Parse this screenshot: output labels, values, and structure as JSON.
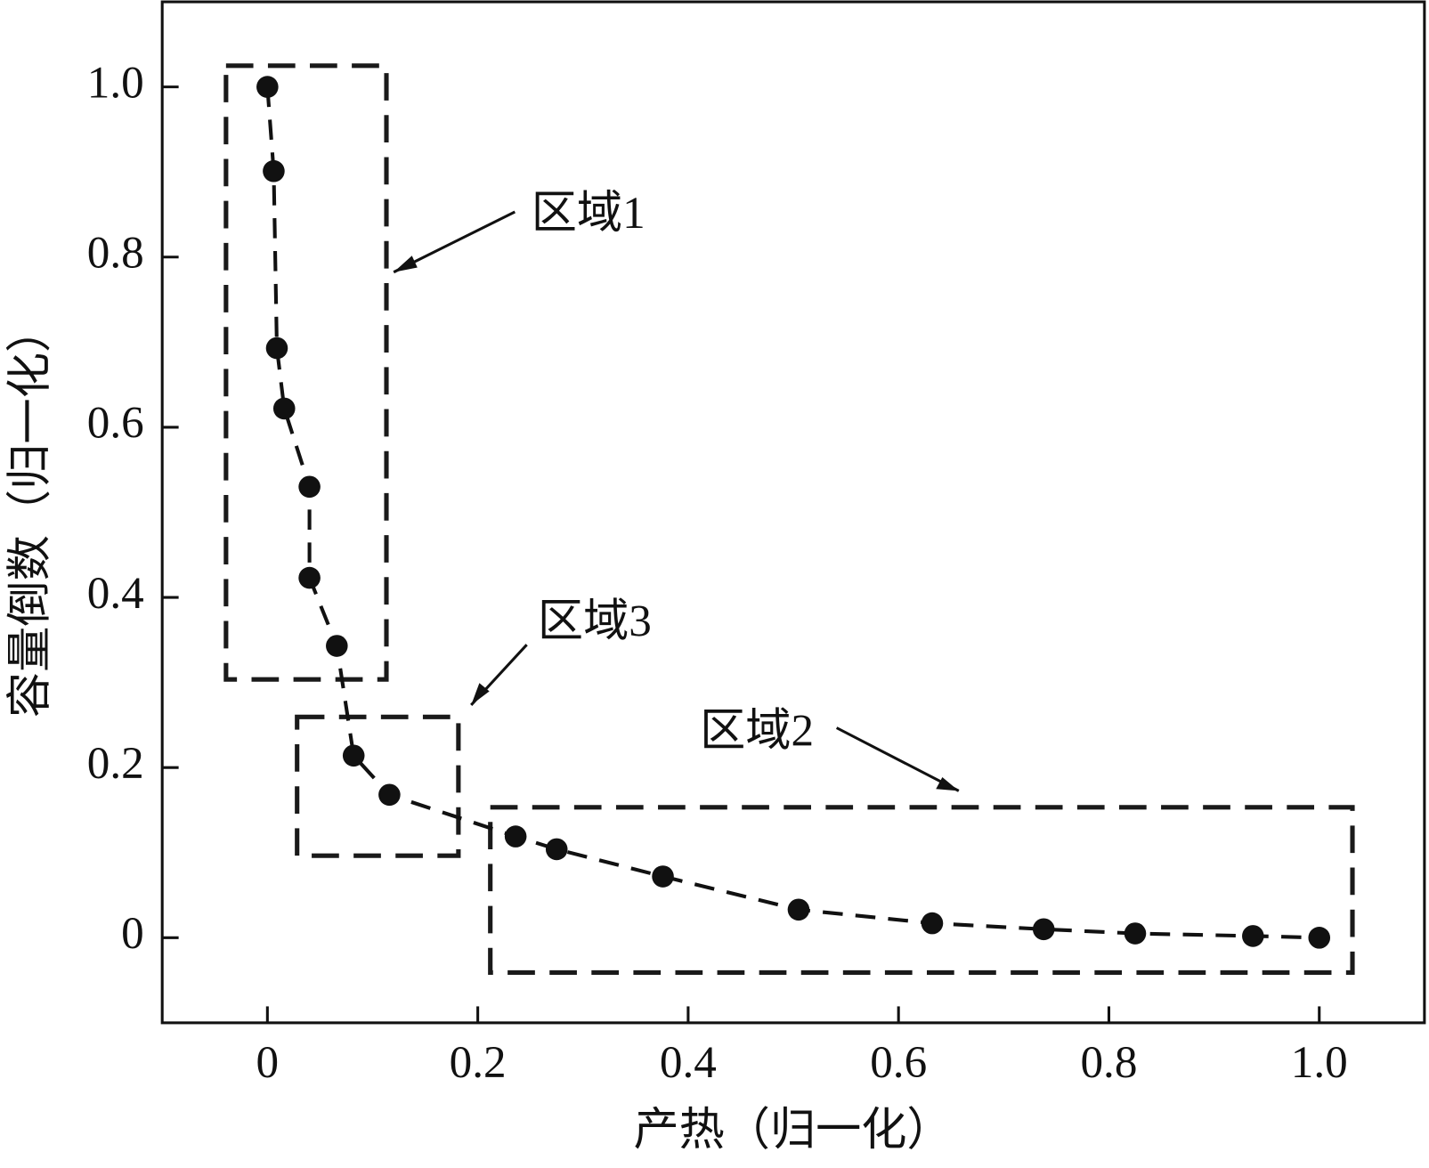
{
  "chart_data": {
    "type": "scatter",
    "x_label": "产热（归一化）",
    "y_label": "容量倒数（归一化）",
    "x": [
      0,
      0.006,
      0.009,
      0.016,
      0.04,
      0.04,
      0.066,
      0.082,
      0.116,
      0.236,
      0.275,
      0.376,
      0.505,
      0.632,
      0.738,
      0.825,
      0.937,
      1.0
    ],
    "values": [
      1.0,
      0.901,
      0.693,
      0.622,
      0.53,
      0.423,
      0.343,
      0.214,
      0.168,
      0.119,
      0.104,
      0.072,
      0.033,
      0.017,
      0.01,
      0.005,
      0.002,
      0
    ],
    "color": "#111111",
    "xlim": [
      -0.1,
      1.1
    ],
    "ylim": [
      -0.1,
      1.1
    ],
    "xticks": [
      0,
      0.2,
      0.4,
      0.6,
      0.8,
      {
        "value": 1,
        "label": "1.0"
      }
    ],
    "yticks": [
      0,
      0.2,
      0.4,
      0.6,
      0.8,
      {
        "value": 1,
        "label": "1.0"
      }
    ],
    "annotations": [
      "区域1",
      "区域2",
      "区域3"
    ]
  }
}
